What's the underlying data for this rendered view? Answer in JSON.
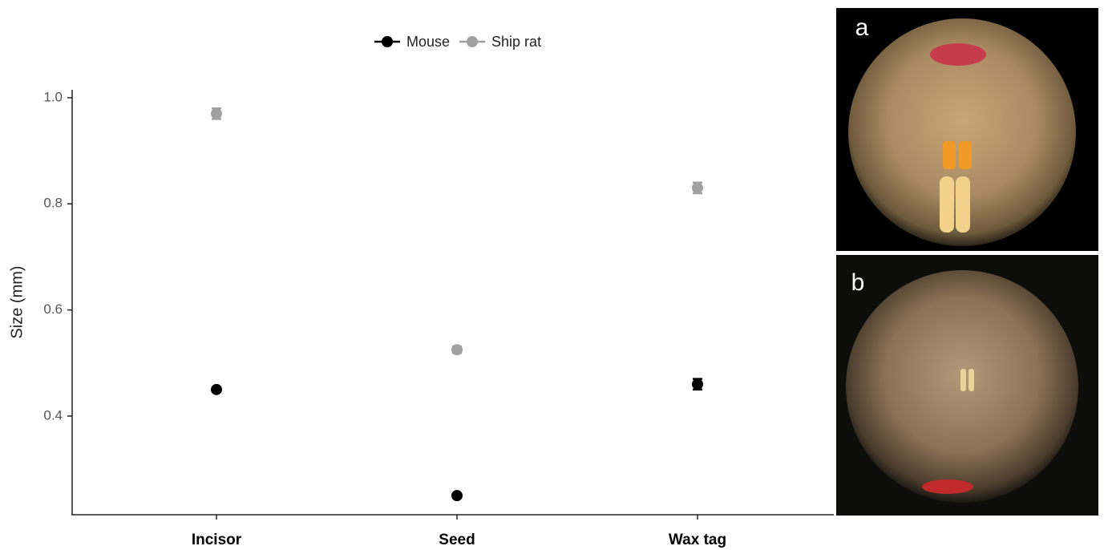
{
  "chart_data": {
    "type": "scatter",
    "y_label": "Size (mm)",
    "categories": [
      "Incisor",
      "Seed",
      "Wax tag"
    ],
    "series": [
      {
        "name": "Mouse",
        "color": "#000000",
        "values": [
          0.45,
          0.25,
          0.46
        ],
        "errors": [
          0.003,
          0.003,
          0.01
        ]
      },
      {
        "name": "Ship rat",
        "color": "#a0a0a0",
        "values": [
          0.97,
          0.525,
          0.83
        ],
        "errors": [
          0.01,
          0.006,
          0.01
        ]
      }
    ],
    "ylim": [
      0.214,
      1.015
    ],
    "yticks": [
      {
        "value": 0.4,
        "label": "0.4"
      },
      {
        "value": 0.6,
        "label": "0.6"
      },
      {
        "value": 0.8,
        "label": "0.8"
      },
      {
        "value": 1.0,
        "label": "1.0"
      }
    ],
    "legend": "top",
    "grid": false
  },
  "panels": [
    {
      "label": "a"
    },
    {
      "label": "b"
    }
  ]
}
